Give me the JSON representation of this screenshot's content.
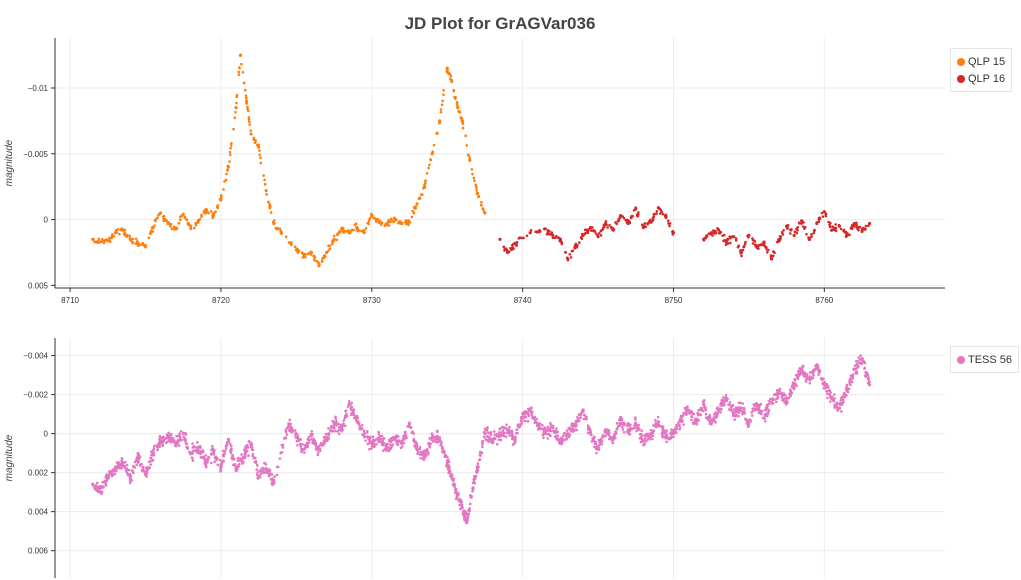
{
  "title": "JD Plot for GrAGVar036",
  "chart_data": [
    {
      "type": "scatter",
      "ylabel": "magnitude",
      "y_inverted": true,
      "xlim": [
        8709,
        8768
      ],
      "ylim": [
        0.0052,
        -0.0138
      ],
      "x_ticks": [
        8710,
        8720,
        8730,
        8740,
        8750,
        8760
      ],
      "y_ticks": [
        0.005,
        0,
        -0.005,
        -0.01
      ],
      "y_tick_labels": [
        "0.005",
        "0",
        "−0.005",
        "−0.01"
      ],
      "grid": true,
      "legend": "right",
      "series": [
        {
          "name": "QLP 15",
          "color": "#ff7f0e",
          "points": [
            [
              8711.5,
              0.0015
            ],
            [
              8712.0,
              0.0017
            ],
            [
              8712.5,
              0.0016
            ],
            [
              8713.0,
              0.001
            ],
            [
              8713.5,
              0.0008
            ],
            [
              8714.0,
              0.0015
            ],
            [
              8714.5,
              0.0018
            ],
            [
              8715.0,
              0.002
            ],
            [
              8715.5,
              0.0006
            ],
            [
              8716.0,
              -0.0005
            ],
            [
              8716.5,
              0.0003
            ],
            [
              8717.0,
              0.0007
            ],
            [
              8717.5,
              -0.0004
            ],
            [
              8718.0,
              0.0006
            ],
            [
              8718.5,
              0.0001
            ],
            [
              8719.0,
              -0.0007
            ],
            [
              8719.5,
              -0.0003
            ],
            [
              8720.0,
              -0.0015
            ],
            [
              8720.5,
              -0.004
            ],
            [
              8721.0,
              -0.0085
            ],
            [
              8721.3,
              -0.0125
            ],
            [
              8721.7,
              -0.009
            ],
            [
              8722.0,
              -0.0065
            ],
            [
              8722.5,
              -0.0055
            ],
            [
              8723.0,
              -0.0022
            ],
            [
              8723.5,
              0.0003
            ],
            [
              8724.0,
              0.001
            ],
            [
              8725.0,
              0.0023
            ],
            [
              8725.5,
              0.0028
            ],
            [
              8726.0,
              0.0025
            ],
            [
              8726.5,
              0.0035
            ],
            [
              8727.0,
              0.0025
            ],
            [
              8727.5,
              0.0015
            ],
            [
              8728.0,
              0.0007
            ],
            [
              8728.5,
              0.001
            ],
            [
              8729.0,
              0.0006
            ],
            [
              8729.5,
              0.001
            ],
            [
              8730.0,
              -0.0003
            ],
            [
              8730.5,
              0.0002
            ],
            [
              8731.0,
              0.0004
            ],
            [
              8731.5,
              -0.0001
            ],
            [
              8732.0,
              0.0003
            ],
            [
              8732.5,
              0.0002
            ],
            [
              8733.0,
              -0.0012
            ],
            [
              8733.5,
              -0.0025
            ],
            [
              8734.0,
              -0.005
            ],
            [
              8734.5,
              -0.0075
            ],
            [
              8735.0,
              -0.0115
            ],
            [
              8735.3,
              -0.0105
            ],
            [
              8735.7,
              -0.0085
            ],
            [
              8736.0,
              -0.0075
            ],
            [
              8736.5,
              -0.0045
            ],
            [
              8737.0,
              -0.002
            ],
            [
              8737.5,
              -0.0005
            ]
          ]
        },
        {
          "name": "QLP 16",
          "color": "#d62728",
          "points": [
            [
              8738.5,
              0.0015
            ],
            [
              8739.0,
              0.0025
            ],
            [
              8739.5,
              0.0018
            ],
            [
              8740.5,
              0.001
            ],
            [
              8741.5,
              0.0007
            ],
            [
              8742.0,
              0.0012
            ],
            [
              8742.5,
              0.0015
            ],
            [
              8743.0,
              0.003
            ],
            [
              8743.5,
              0.002
            ],
            [
              8744.0,
              0.0012
            ],
            [
              8744.5,
              0.0006
            ],
            [
              8745.0,
              0.0013
            ],
            [
              8745.5,
              0.0003
            ],
            [
              8746.0,
              0.0008
            ],
            [
              8746.5,
              -0.0003
            ],
            [
              8747.0,
              0.0003
            ],
            [
              8747.5,
              -0.0008
            ],
            [
              8748.0,
              0.0006
            ],
            [
              8748.5,
              0.0002
            ],
            [
              8749.0,
              -0.0009
            ],
            [
              8749.5,
              -0.0002
            ],
            [
              8750.0,
              0.001
            ],
            [
              8752.0,
              0.0015
            ],
            [
              8752.5,
              0.001
            ],
            [
              8753.0,
              0.0008
            ],
            [
              8753.5,
              0.0017
            ],
            [
              8754.0,
              0.0013
            ],
            [
              8754.5,
              0.0025
            ],
            [
              8755.0,
              0.0012
            ],
            [
              8755.5,
              0.002
            ],
            [
              8756.0,
              0.0018
            ],
            [
              8756.5,
              0.003
            ],
            [
              8757.0,
              0.0015
            ],
            [
              8757.5,
              0.0005
            ],
            [
              8758.0,
              0.0012
            ],
            [
              8758.5,
              0.0001
            ],
            [
              8759.0,
              0.0015
            ],
            [
              8759.5,
              0.0003
            ],
            [
              8760.0,
              -0.0006
            ],
            [
              8760.5,
              0.0008
            ],
            [
              8761.0,
              0.0005
            ],
            [
              8761.5,
              0.0012
            ],
            [
              8762.0,
              0.0003
            ],
            [
              8762.5,
              0.0009
            ],
            [
              8763.0,
              0.0003
            ]
          ]
        }
      ]
    },
    {
      "type": "scatter",
      "ylabel": "magnitude",
      "y_inverted": true,
      "xlim": [
        8709,
        8768
      ],
      "ylim": [
        0.0074,
        -0.0049
      ],
      "y_ticks": [
        0.006,
        0.004,
        0.002,
        0,
        -0.002,
        -0.004
      ],
      "y_tick_labels": [
        "0.006",
        "0.004",
        "0.002",
        "0",
        "−0.002",
        "−0.004"
      ],
      "grid": true,
      "legend": "right",
      "series": [
        {
          "name": "TESS 56",
          "color": "#e377c2",
          "points": [
            [
              8711.5,
              0.0026
            ],
            [
              8712.0,
              0.003
            ],
            [
              8712.5,
              0.0022
            ],
            [
              8713.0,
              0.0018
            ],
            [
              8713.5,
              0.0015
            ],
            [
              8714.0,
              0.0023
            ],
            [
              8714.5,
              0.0012
            ],
            [
              8715.0,
              0.0021
            ],
            [
              8715.5,
              0.001
            ],
            [
              8716.0,
              0.0004
            ],
            [
              8716.5,
              0.0002
            ],
            [
              8717.0,
              0.0005
            ],
            [
              8717.5,
              0.0
            ],
            [
              8718.0,
              0.001
            ],
            [
              8718.5,
              0.0007
            ],
            [
              8719.0,
              0.0015
            ],
            [
              8719.5,
              0.0009
            ],
            [
              8720.0,
              0.0017
            ],
            [
              8720.5,
              0.0003
            ],
            [
              8721.0,
              0.0018
            ],
            [
              8721.5,
              0.0012
            ],
            [
              8722.0,
              0.0005
            ],
            [
              8722.5,
              0.0022
            ],
            [
              8723.0,
              0.0018
            ],
            [
              8723.5,
              0.0025
            ],
            [
              8724.5,
              -0.0005
            ],
            [
              8725.0,
              0.0002
            ],
            [
              8725.5,
              0.0008
            ],
            [
              8726.0,
              0.0001
            ],
            [
              8726.5,
              0.0008
            ],
            [
              8727.0,
              0.0002
            ],
            [
              8727.5,
              -0.0005
            ],
            [
              8728.0,
              -0.0002
            ],
            [
              8728.5,
              -0.0015
            ],
            [
              8729.0,
              -0.0008
            ],
            [
              8729.5,
              0.0
            ],
            [
              8730.0,
              0.0005
            ],
            [
              8730.5,
              0.0003
            ],
            [
              8731.0,
              0.0008
            ],
            [
              8731.5,
              0.0002
            ],
            [
              8732.0,
              0.0005
            ],
            [
              8732.5,
              -0.0005
            ],
            [
              8733.0,
              0.0008
            ],
            [
              8733.5,
              0.0012
            ],
            [
              8734.0,
              0.0002
            ],
            [
              8734.5,
              0.0003
            ],
            [
              8735.0,
              0.0015
            ],
            [
              8735.3,
              0.0022
            ],
            [
              8735.6,
              0.003
            ],
            [
              8736.0,
              0.0038
            ],
            [
              8736.3,
              0.0045
            ],
            [
              8736.7,
              0.0028
            ],
            [
              8737.0,
              0.0018
            ],
            [
              8737.5,
              0.0
            ],
            [
              8738.0,
              0.0003
            ],
            [
              8738.5,
              0.0
            ],
            [
              8739.0,
              -0.0002
            ],
            [
              8739.5,
              0.0003
            ],
            [
              8740.0,
              -0.0008
            ],
            [
              8740.5,
              -0.0012
            ],
            [
              8741.0,
              -0.0005
            ],
            [
              8741.5,
              0.0
            ],
            [
              8742.0,
              -0.0003
            ],
            [
              8742.5,
              0.0005
            ],
            [
              8743.0,
              0.0
            ],
            [
              8743.5,
              -0.0004
            ],
            [
              8744.0,
              -0.0012
            ],
            [
              8744.5,
              0.0
            ],
            [
              8745.0,
              0.0008
            ],
            [
              8745.5,
              -0.0002
            ],
            [
              8746.0,
              0.0003
            ],
            [
              8746.5,
              -0.0007
            ],
            [
              8747.0,
              -0.0002
            ],
            [
              8747.5,
              -0.0005
            ],
            [
              8748.0,
              0.0004
            ],
            [
              8748.5,
              0.0
            ],
            [
              8749.0,
              -0.0006
            ],
            [
              8749.5,
              0.0002
            ],
            [
              8750.0,
              0.0
            ],
            [
              8750.5,
              -0.0008
            ],
            [
              8751.0,
              -0.0012
            ],
            [
              8751.5,
              -0.0006
            ],
            [
              8752.0,
              -0.0015
            ],
            [
              8752.5,
              -0.0005
            ],
            [
              8753.0,
              -0.0012
            ],
            [
              8753.5,
              -0.0018
            ],
            [
              8754.0,
              -0.001
            ],
            [
              8754.5,
              -0.0013
            ],
            [
              8755.0,
              -0.0006
            ],
            [
              8755.5,
              -0.0015
            ],
            [
              8756.0,
              -0.0008
            ],
            [
              8756.5,
              -0.0016
            ],
            [
              8757.0,
              -0.0022
            ],
            [
              8757.5,
              -0.0016
            ],
            [
              8758.0,
              -0.0025
            ],
            [
              8758.5,
              -0.0033
            ],
            [
              8759.0,
              -0.0028
            ],
            [
              8759.5,
              -0.0035
            ],
            [
              8760.0,
              -0.0025
            ],
            [
              8760.5,
              -0.0018
            ],
            [
              8761.0,
              -0.0013
            ],
            [
              8761.5,
              -0.0022
            ],
            [
              8762.0,
              -0.0033
            ],
            [
              8762.5,
              -0.0038
            ],
            [
              8763.0,
              -0.0025
            ]
          ]
        }
      ]
    }
  ]
}
